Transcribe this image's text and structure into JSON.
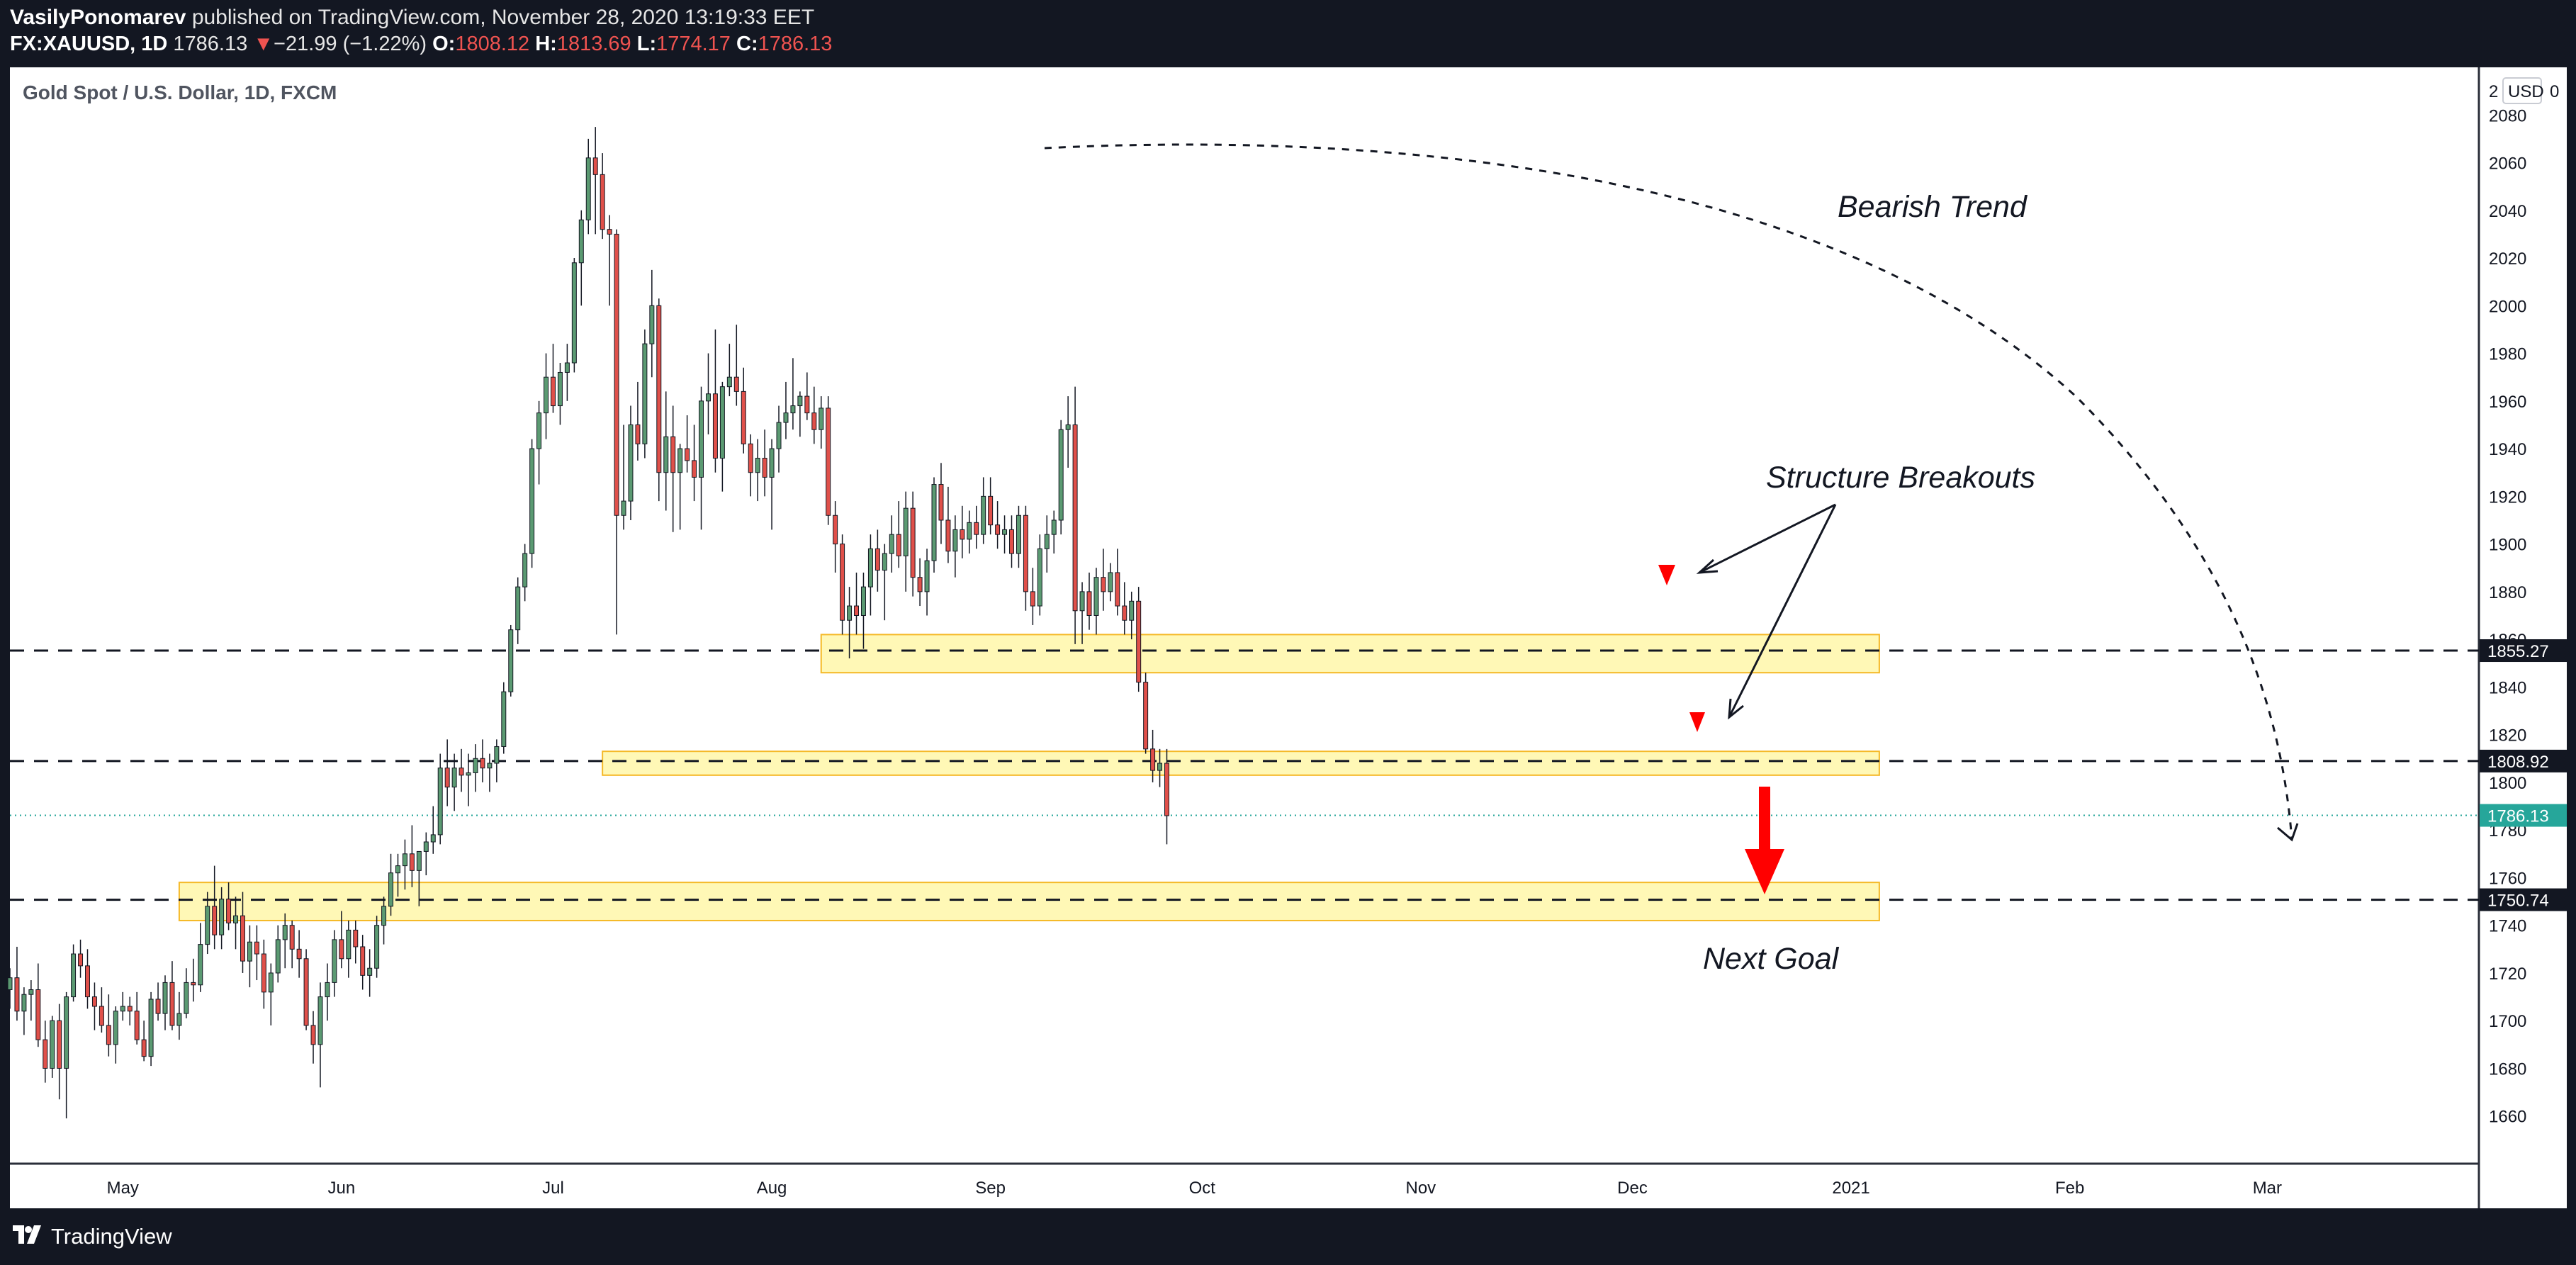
{
  "header": {
    "author": "VasilyPonomarev",
    "published_text": "published on TradingView.com, November 28, 2020 13:19:33 EET",
    "symbol": "FX:XAUUSD, 1D",
    "last": "1786.13",
    "change_arrow": "▼",
    "change": "−21.99 (−1.22%)",
    "o_label": "O:",
    "o_value": "1808.12",
    "h_label": "H:",
    "h_value": "1813.69",
    "l_label": "L:",
    "l_value": "1774.17",
    "c_label": "C:",
    "c_value": "1786.13"
  },
  "footer": {
    "brand": "TradingView"
  },
  "chart_data": {
    "type": "candlestick",
    "title": "Gold Spot / U.S. Dollar, 1D, FXCM",
    "currency": "USD",
    "y_axis_top_label": "2",
    "y_axis_top_small": "0",
    "ylim": [
      1640,
      2100
    ],
    "y_ticks": [
      1660,
      1680,
      1700,
      1720,
      1740,
      1760,
      1780,
      1800,
      1820,
      1840,
      1860,
      1880,
      1900,
      1920,
      1940,
      1960,
      1980,
      2000,
      2020,
      2040,
      2060,
      2080
    ],
    "x_ticks": [
      "May",
      "Jun",
      "Jul",
      "Aug",
      "Sep",
      "Oct",
      "Nov",
      "Dec",
      "2021",
      "Feb",
      "Mar"
    ],
    "x_tick_days": [
      16,
      47,
      77,
      108,
      139,
      169,
      200,
      230,
      261,
      292,
      320
    ],
    "visible_days": [
      0,
      350
    ],
    "price_levels": [
      {
        "value": 1855.27,
        "label": "1855.27",
        "style": "dashed"
      },
      {
        "value": 1808.92,
        "label": "1808.92",
        "style": "dashed"
      },
      {
        "value": 1750.74,
        "label": "1750.74",
        "style": "dashed"
      }
    ],
    "last_price": {
      "value": 1786.13,
      "label": "1786.13",
      "color": "#26a69a"
    },
    "zones": [
      {
        "from_day": 115,
        "to_day": 265,
        "low": 1846,
        "high": 1862
      },
      {
        "from_day": 84,
        "to_day": 265,
        "low": 1803,
        "high": 1813
      },
      {
        "from_day": 24,
        "to_day": 265,
        "low": 1742,
        "high": 1758
      }
    ],
    "annotations": {
      "bearish_trend": "Bearish Trend",
      "structure_breakouts": "Structure Breakouts",
      "next_goal": "Next Goal"
    },
    "colors": {
      "up": "#5b9a72",
      "down": "#e0504a",
      "zone_fill": "#fff59d",
      "zone_border": "#f5b928",
      "arrow": "#ff0000",
      "background": "#ffffff"
    },
    "ohlc": [
      [
        0,
        1713,
        1722,
        1705,
        1718
      ],
      [
        1,
        1718,
        1731,
        1700,
        1704
      ],
      [
        2,
        1704,
        1714,
        1694,
        1711
      ],
      [
        3,
        1711,
        1717,
        1700,
        1713
      ],
      [
        4,
        1713,
        1724,
        1689,
        1692
      ],
      [
        5,
        1692,
        1700,
        1674,
        1680
      ],
      [
        6,
        1680,
        1702,
        1676,
        1700
      ],
      [
        7,
        1700,
        1707,
        1667,
        1680
      ],
      [
        8,
        1680,
        1712,
        1659,
        1710
      ],
      [
        9,
        1710,
        1732,
        1708,
        1728
      ],
      [
        10,
        1728,
        1734,
        1718,
        1723
      ],
      [
        11,
        1723,
        1730,
        1705,
        1710
      ],
      [
        12,
        1710,
        1716,
        1696,
        1706
      ],
      [
        13,
        1706,
        1714,
        1695,
        1698
      ],
      [
        14,
        1698,
        1711,
        1685,
        1690
      ],
      [
        15,
        1690,
        1706,
        1682,
        1704
      ],
      [
        16,
        1704,
        1712,
        1700,
        1706
      ],
      [
        17,
        1706,
        1710,
        1698,
        1704
      ],
      [
        18,
        1704,
        1712,
        1690,
        1692
      ],
      [
        19,
        1692,
        1700,
        1683,
        1685
      ],
      [
        20,
        1685,
        1712,
        1681,
        1709
      ],
      [
        21,
        1709,
        1716,
        1700,
        1703
      ],
      [
        22,
        1703,
        1719,
        1696,
        1716
      ],
      [
        23,
        1716,
        1725,
        1696,
        1698
      ],
      [
        24,
        1698,
        1712,
        1692,
        1703
      ],
      [
        25,
        1703,
        1722,
        1701,
        1716
      ],
      [
        26,
        1716,
        1726,
        1708,
        1715
      ],
      [
        27,
        1715,
        1741,
        1712,
        1732
      ],
      [
        28,
        1732,
        1754,
        1728,
        1748
      ],
      [
        29,
        1748,
        1765,
        1730,
        1736
      ],
      [
        30,
        1736,
        1756,
        1730,
        1751
      ],
      [
        31,
        1751,
        1758,
        1738,
        1741
      ],
      [
        32,
        1741,
        1752,
        1730,
        1744
      ],
      [
        33,
        1744,
        1754,
        1720,
        1725
      ],
      [
        34,
        1725,
        1740,
        1714,
        1733
      ],
      [
        35,
        1733,
        1740,
        1717,
        1728
      ],
      [
        36,
        1728,
        1734,
        1705,
        1712
      ],
      [
        37,
        1712,
        1724,
        1698,
        1720
      ],
      [
        38,
        1720,
        1740,
        1716,
        1734
      ],
      [
        39,
        1734,
        1745,
        1722,
        1740
      ],
      [
        40,
        1740,
        1742,
        1722,
        1730
      ],
      [
        41,
        1730,
        1738,
        1718,
        1726
      ],
      [
        42,
        1726,
        1730,
        1696,
        1698
      ],
      [
        43,
        1698,
        1704,
        1682,
        1690
      ],
      [
        44,
        1690,
        1716,
        1672,
        1710
      ],
      [
        45,
        1710,
        1724,
        1700,
        1716
      ],
      [
        46,
        1716,
        1738,
        1710,
        1734
      ],
      [
        47,
        1734,
        1746,
        1722,
        1726
      ],
      [
        48,
        1726,
        1742,
        1718,
        1738
      ],
      [
        49,
        1738,
        1742,
        1724,
        1731
      ],
      [
        50,
        1731,
        1736,
        1713,
        1719
      ],
      [
        51,
        1719,
        1730,
        1710,
        1722
      ],
      [
        52,
        1722,
        1744,
        1718,
        1740
      ],
      [
        53,
        1740,
        1752,
        1732,
        1748
      ],
      [
        54,
        1748,
        1770,
        1744,
        1762
      ],
      [
        55,
        1762,
        1770,
        1752,
        1765
      ],
      [
        56,
        1765,
        1776,
        1755,
        1770
      ],
      [
        57,
        1770,
        1782,
        1756,
        1763
      ],
      [
        58,
        1763,
        1770,
        1748,
        1771
      ],
      [
        59,
        1771,
        1779,
        1761,
        1775
      ],
      [
        60,
        1775,
        1790,
        1770,
        1778
      ],
      [
        61,
        1778,
        1812,
        1774,
        1806
      ],
      [
        62,
        1806,
        1818,
        1790,
        1798
      ],
      [
        63,
        1798,
        1812,
        1788,
        1806
      ],
      [
        64,
        1806,
        1814,
        1796,
        1803
      ],
      [
        65,
        1803,
        1812,
        1790,
        1804
      ],
      [
        66,
        1804,
        1816,
        1796,
        1810
      ],
      [
        67,
        1810,
        1818,
        1800,
        1806
      ],
      [
        68,
        1806,
        1812,
        1796,
        1808
      ],
      [
        69,
        1808,
        1818,
        1800,
        1815
      ],
      [
        70,
        1815,
        1842,
        1812,
        1838
      ],
      [
        71,
        1838,
        1866,
        1836,
        1864
      ],
      [
        72,
        1864,
        1886,
        1858,
        1882
      ],
      [
        73,
        1882,
        1900,
        1876,
        1896
      ],
      [
        74,
        1896,
        1944,
        1890,
        1940
      ],
      [
        75,
        1940,
        1960,
        1925,
        1955
      ],
      [
        76,
        1955,
        1980,
        1944,
        1970
      ],
      [
        77,
        1970,
        1984,
        1955,
        1958
      ],
      [
        78,
        1958,
        1976,
        1950,
        1972
      ],
      [
        79,
        1972,
        1984,
        1960,
        1976
      ],
      [
        80,
        1976,
        2020,
        1972,
        2018
      ],
      [
        81,
        2018,
        2040,
        2000,
        2036
      ],
      [
        82,
        2036,
        2070,
        2030,
        2062
      ],
      [
        83,
        2062,
        2075,
        2030,
        2055
      ],
      [
        84,
        2055,
        2064,
        2028,
        2032
      ],
      [
        85,
        2032,
        2038,
        2000,
        2030
      ],
      [
        86,
        2030,
        2032,
        1862,
        1912
      ],
      [
        87,
        1912,
        1950,
        1906,
        1918
      ],
      [
        88,
        1918,
        1958,
        1910,
        1950
      ],
      [
        89,
        1950,
        1968,
        1935,
        1942
      ],
      [
        90,
        1942,
        1990,
        1936,
        1984
      ],
      [
        91,
        1984,
        2015,
        1970,
        2000
      ],
      [
        92,
        2000,
        2003,
        1918,
        1930
      ],
      [
        93,
        1930,
        1964,
        1914,
        1945
      ],
      [
        94,
        1945,
        1958,
        1905,
        1930
      ],
      [
        95,
        1930,
        1942,
        1906,
        1940
      ],
      [
        96,
        1940,
        1954,
        1930,
        1935
      ],
      [
        97,
        1935,
        1950,
        1918,
        1928
      ],
      [
        98,
        1928,
        1966,
        1906,
        1960
      ],
      [
        99,
        1960,
        1980,
        1946,
        1963
      ],
      [
        100,
        1963,
        1990,
        1930,
        1936
      ],
      [
        101,
        1936,
        1968,
        1922,
        1966
      ],
      [
        102,
        1966,
        1984,
        1962,
        1970
      ],
      [
        103,
        1970,
        1992,
        1958,
        1964
      ],
      [
        104,
        1964,
        1974,
        1938,
        1942
      ],
      [
        105,
        1942,
        1946,
        1920,
        1930
      ],
      [
        106,
        1930,
        1944,
        1918,
        1936
      ],
      [
        107,
        1936,
        1948,
        1920,
        1928
      ],
      [
        108,
        1928,
        1944,
        1906,
        1940
      ],
      [
        109,
        1940,
        1958,
        1930,
        1951
      ],
      [
        110,
        1951,
        1968,
        1944,
        1955
      ],
      [
        111,
        1955,
        1978,
        1948,
        1958
      ],
      [
        112,
        1958,
        1964,
        1945,
        1962
      ],
      [
        113,
        1962,
        1972,
        1952,
        1955
      ],
      [
        114,
        1955,
        1966,
        1942,
        1948
      ],
      [
        115,
        1948,
        1962,
        1940,
        1957
      ],
      [
        116,
        1957,
        1962,
        1908,
        1912
      ],
      [
        117,
        1912,
        1918,
        1888,
        1900
      ],
      [
        118,
        1900,
        1904,
        1862,
        1868
      ],
      [
        119,
        1868,
        1882,
        1852,
        1874
      ],
      [
        120,
        1874,
        1888,
        1862,
        1870
      ],
      [
        121,
        1870,
        1888,
        1856,
        1882
      ],
      [
        122,
        1882,
        1904,
        1870,
        1898
      ],
      [
        123,
        1898,
        1906,
        1880,
        1889
      ],
      [
        124,
        1889,
        1900,
        1868,
        1896
      ],
      [
        125,
        1896,
        1912,
        1888,
        1904
      ],
      [
        126,
        1904,
        1918,
        1890,
        1895
      ],
      [
        127,
        1895,
        1922,
        1880,
        1915
      ],
      [
        128,
        1915,
        1922,
        1878,
        1886
      ],
      [
        129,
        1886,
        1894,
        1874,
        1880
      ],
      [
        130,
        1880,
        1898,
        1870,
        1893
      ],
      [
        131,
        1893,
        1928,
        1888,
        1925
      ],
      [
        132,
        1925,
        1934,
        1900,
        1910
      ],
      [
        133,
        1910,
        1924,
        1892,
        1897
      ],
      [
        134,
        1897,
        1912,
        1886,
        1906
      ],
      [
        135,
        1906,
        1916,
        1894,
        1902
      ],
      [
        136,
        1902,
        1914,
        1896,
        1909
      ],
      [
        137,
        1909,
        1916,
        1898,
        1904
      ],
      [
        138,
        1904,
        1928,
        1900,
        1920
      ],
      [
        139,
        1920,
        1928,
        1904,
        1908
      ],
      [
        140,
        1908,
        1918,
        1898,
        1904
      ],
      [
        141,
        1904,
        1912,
        1896,
        1906
      ],
      [
        142,
        1906,
        1912,
        1890,
        1896
      ],
      [
        143,
        1896,
        1916,
        1890,
        1912
      ],
      [
        144,
        1912,
        1916,
        1872,
        1880
      ],
      [
        145,
        1880,
        1890,
        1866,
        1874
      ],
      [
        146,
        1874,
        1904,
        1870,
        1898
      ],
      [
        147,
        1898,
        1912,
        1888,
        1904
      ],
      [
        148,
        1904,
        1914,
        1896,
        1910
      ],
      [
        149,
        1910,
        1952,
        1904,
        1948
      ],
      [
        150,
        1948,
        1962,
        1932,
        1950
      ],
      [
        151,
        1950,
        1966,
        1858,
        1872
      ],
      [
        152,
        1872,
        1884,
        1858,
        1880
      ],
      [
        153,
        1880,
        1888,
        1864,
        1870
      ],
      [
        154,
        1870,
        1890,
        1862,
        1886
      ],
      [
        155,
        1886,
        1898,
        1872,
        1880
      ],
      [
        156,
        1880,
        1892,
        1876,
        1888
      ],
      [
        157,
        1888,
        1898,
        1870,
        1874
      ],
      [
        158,
        1874,
        1884,
        1862,
        1868
      ],
      [
        159,
        1868,
        1880,
        1860,
        1876
      ],
      [
        160,
        1876,
        1882,
        1838,
        1842
      ],
      [
        161,
        1842,
        1846,
        1812,
        1814
      ],
      [
        162,
        1814,
        1822,
        1800,
        1805
      ],
      [
        163,
        1805,
        1814,
        1798,
        1808
      ],
      [
        164,
        1808,
        1814,
        1774,
        1786
      ]
    ]
  }
}
